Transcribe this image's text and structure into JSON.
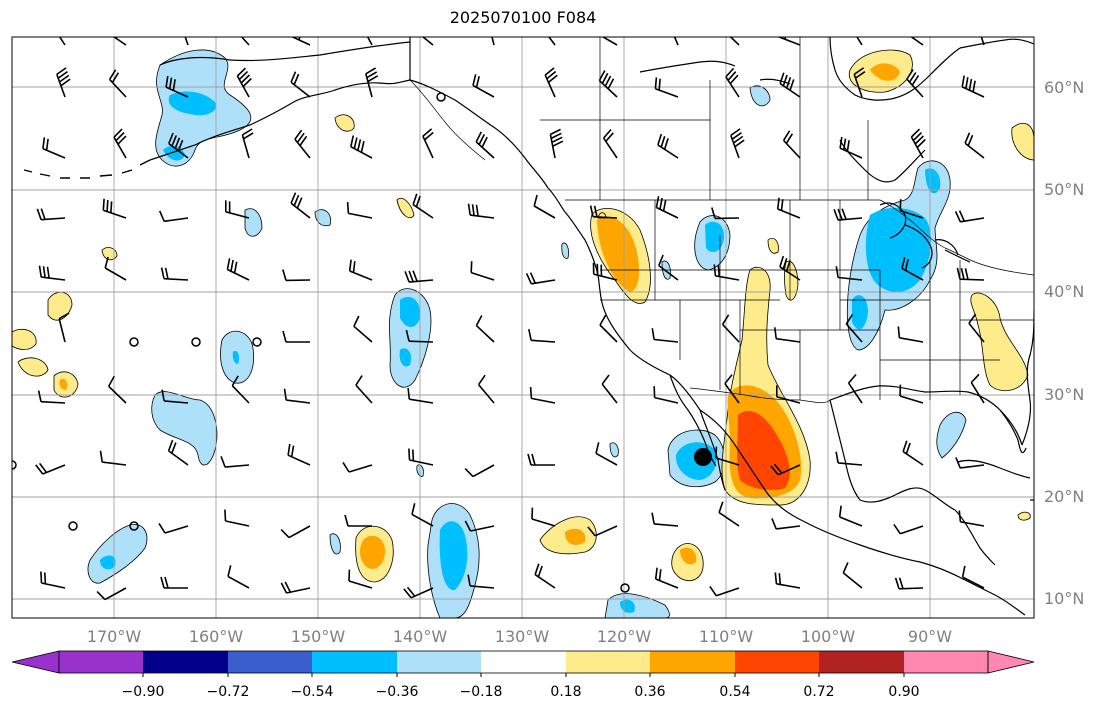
{
  "title": "2025070100 F084",
  "lat_labels": [
    "60°N",
    "50°N",
    "40°N",
    "30°N",
    "20°N",
    "10°N"
  ],
  "lon_labels": [
    "170°W",
    "160°W",
    "150°W",
    "140°W",
    "130°W",
    "120°W",
    "110°W",
    "100°W",
    "90°W"
  ],
  "colorbar": {
    "tick_labels": [
      "−0.90",
      "−0.72",
      "−0.54",
      "−0.36",
      "−0.18",
      "0.18",
      "0.36",
      "0.54",
      "0.72",
      "0.90"
    ],
    "colors": [
      "#9932cc",
      "#00008b",
      "#3a5fcd",
      "#00bfff",
      "#afe0fa",
      "#ffffff",
      "#fdeb8c",
      "#ffa500",
      "#ff4500",
      "#b22222",
      "#ff88b0"
    ]
  },
  "colors": {
    "coast": "#000000",
    "grid": "#a0a0a0",
    "barb": "#000000"
  }
}
